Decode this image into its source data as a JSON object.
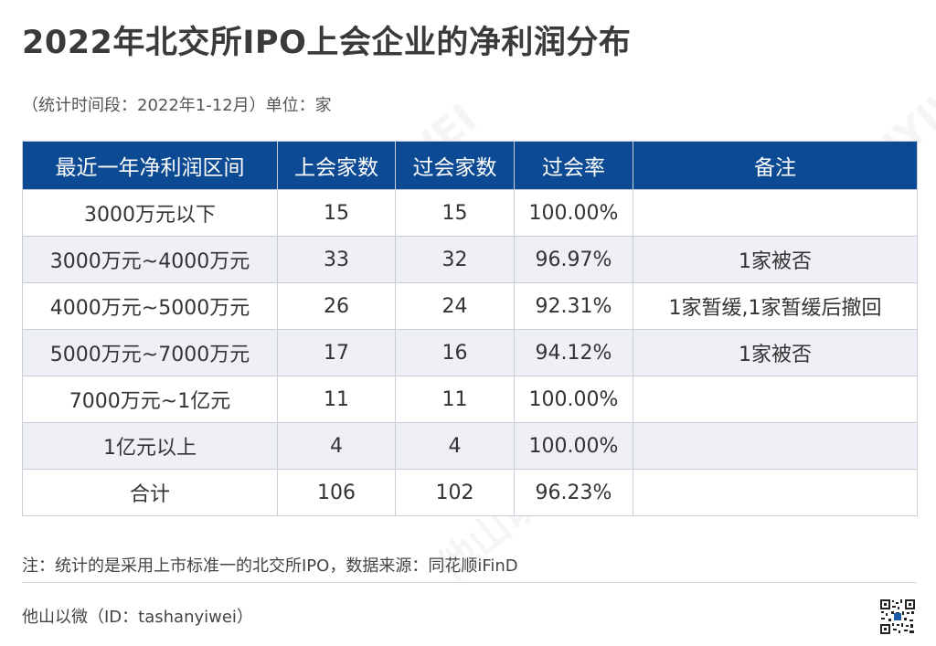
{
  "title": "2022年北交所IPO上会企业的净利润分布",
  "subtitle": "（统计时间段：2022年1-12月）单位：家",
  "table": {
    "headers": [
      "最近一年净利润区间",
      "上会家数",
      "过会家数",
      "过会率",
      "备注"
    ],
    "rows": [
      [
        "3000万元以下",
        "15",
        "15",
        "100.00%",
        ""
      ],
      [
        "3000万元~4000万元",
        "33",
        "32",
        "96.97%",
        "1家被否"
      ],
      [
        "4000万元~5000万元",
        "26",
        "24",
        "92.31%",
        "1家暂缓,1家暂缓后撤回"
      ],
      [
        "5000万元~7000万元",
        "17",
        "16",
        "94.12%",
        "1家被否"
      ],
      [
        "7000万元~1亿元",
        "11",
        "11",
        "100.00%",
        ""
      ],
      [
        "1亿元以上",
        "4",
        "4",
        "100.00%",
        ""
      ],
      [
        "合计",
        "106",
        "102",
        "96.23%",
        ""
      ]
    ]
  },
  "note": "注：统计的是采用上市标准一的北交所IPO，数据来源：同花顺iFinD",
  "footer": "他山以微（ID：tashanyiwei）",
  "watermark_text": "他山以微 TASHANYIWEI",
  "colors": {
    "header_bg": "#0d4a94",
    "header_text": "#ffffff",
    "stripe_bg": "#eef0f5",
    "border": "#c9ced8"
  },
  "icons": {
    "qr": "qr-code-icon"
  }
}
